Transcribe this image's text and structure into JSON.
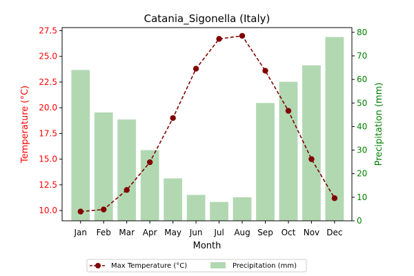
{
  "chart_data": {
    "type": "bar+line",
    "title": "Catania_Sigonella (Italy)",
    "xlabel": "Month",
    "categories": [
      "Jan",
      "Feb",
      "Mar",
      "Apr",
      "May",
      "Jun",
      "Jul",
      "Aug",
      "Sep",
      "Oct",
      "Nov",
      "Dec"
    ],
    "left_axis": {
      "label": "Temperature (°C)",
      "color": "#ff0000",
      "ylim": [
        9.0,
        27.8
      ],
      "ticks": [
        "10.0",
        "12.5",
        "15.0",
        "17.5",
        "20.0",
        "22.5",
        "25.0",
        "27.5"
      ]
    },
    "right_axis": {
      "label": "Precipitation (mm)",
      "color": "#008000",
      "ylim": [
        0,
        82
      ],
      "ticks": [
        "0",
        "10",
        "20",
        "30",
        "40",
        "50",
        "60",
        "70",
        "80"
      ]
    },
    "series": [
      {
        "name": "Max Temperature (°C)",
        "kind": "line",
        "axis": "left",
        "color": "#800000",
        "style": "dashed-with-circles",
        "values": [
          9.9,
          10.1,
          12.0,
          14.7,
          19.0,
          23.8,
          26.7,
          27.0,
          23.6,
          19.7,
          15.0,
          11.2
        ]
      },
      {
        "name": "Precipitation (mm)",
        "kind": "bar",
        "axis": "right",
        "color": "#b2d8b2",
        "values": [
          64,
          46,
          43,
          30,
          18,
          11,
          8,
          10,
          50,
          59,
          66,
          78
        ]
      }
    ],
    "legend": {
      "placement": "bottom-center"
    },
    "grid": false
  }
}
